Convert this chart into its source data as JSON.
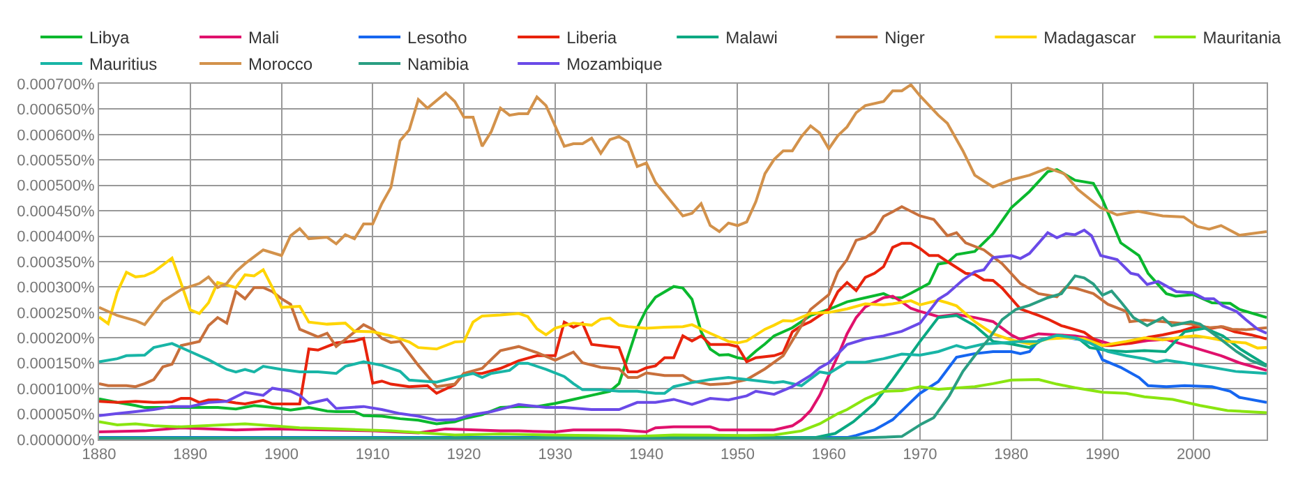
{
  "chart_data": {
    "type": "line",
    "legend": "top",
    "grid": true,
    "xlim": [
      1880,
      2008
    ],
    "ylim": [
      0,
      0.0007
    ],
    "xticks": [
      1880,
      1890,
      1900,
      1910,
      1920,
      1930,
      1940,
      1950,
      1960,
      1970,
      1980,
      1990,
      2000
    ],
    "yticks": [
      {
        "value": 0,
        "label": "0.000000%"
      },
      {
        "value": 5e-05,
        "label": "0.000050%"
      },
      {
        "value": 0.0001,
        "label": "0.000100%"
      },
      {
        "value": 0.00015,
        "label": "0.000150%"
      },
      {
        "value": 0.0002,
        "label": "0.000200%"
      },
      {
        "value": 0.00025,
        "label": "0.000250%"
      },
      {
        "value": 0.0003,
        "label": "0.000300%"
      },
      {
        "value": 0.00035,
        "label": "0.000350%"
      },
      {
        "value": 0.0004,
        "label": "0.000400%"
      },
      {
        "value": 0.00045,
        "label": "0.000450%"
      },
      {
        "value": 0.0005,
        "label": "0.000500%"
      },
      {
        "value": 0.00055,
        "label": "0.000550%"
      },
      {
        "value": 0.0006,
        "label": "0.000600%"
      },
      {
        "value": 0.00065,
        "label": "0.000650%"
      },
      {
        "value": 0.0007,
        "label": "0.000700%"
      }
    ],
    "series": [
      {
        "name": "Libya",
        "color": "#0ab82e",
        "x": [
          1880,
          1882,
          1884,
          1885,
          1887,
          1889,
          1891,
          1893,
          1895,
          1897,
          1899,
          1901,
          1903,
          1905,
          1906,
          1908,
          1909,
          1911,
          1913,
          1915,
          1917,
          1919,
          1920,
          1922,
          1924,
          1926,
          1928,
          1930,
          1932,
          1934,
          1936,
          1937,
          1938,
          1939,
          1940,
          1941,
          1943,
          1944,
          1945,
          1946,
          1947,
          1948,
          1949,
          1950,
          1951,
          1952,
          1953,
          1954,
          1956,
          1958,
          1960,
          1962,
          1964,
          1966,
          1967,
          1968,
          1969,
          1971,
          1972,
          1973,
          1974,
          1976,
          1978,
          1980,
          1982,
          1984,
          1985,
          1987,
          1989,
          1990,
          1992,
          1994,
          1995,
          1997,
          1998,
          2000,
          2002,
          2004,
          2005,
          2008
        ],
        "values": [
          8e-05,
          7.3e-05,
          6.7e-05,
          6.3e-05,
          6.3e-05,
          6.3e-05,
          6.3e-05,
          6.3e-05,
          6e-05,
          6.7e-05,
          6.3e-05,
          5.8e-05,
          6.3e-05,
          5.6e-05,
          5.5e-05,
          5.5e-05,
          4.7e-05,
          4.6e-05,
          4.1e-05,
          3.8e-05,
          3.1e-05,
          3.5e-05,
          4.1e-05,
          4.9e-05,
          6.3e-05,
          6.5e-05,
          6.5e-05,
          7.1e-05,
          7.9e-05,
          8.7e-05,
          9.5e-05,
          0.00011,
          0.000165,
          0.00022,
          0.000256,
          0.00028,
          0.000301,
          0.000298,
          0.000276,
          0.000212,
          0.000178,
          0.000166,
          0.000167,
          0.000161,
          0.000158,
          0.000174,
          0.000188,
          0.000204,
          0.00022,
          0.000244,
          0.000256,
          0.000271,
          0.000279,
          0.000287,
          0.000279,
          0.000279,
          0.000288,
          0.000307,
          0.000345,
          0.000348,
          0.000364,
          0.00037,
          0.000405,
          0.000456,
          0.000488,
          0.000527,
          0.000531,
          0.00051,
          0.000504,
          0.000472,
          0.000387,
          0.000362,
          0.000327,
          0.000287,
          0.000282,
          0.000285,
          0.000269,
          0.000268,
          0.000256,
          0.00024
        ]
      },
      {
        "name": "Mali",
        "color": "#e0116c",
        "x": [
          1880,
          1885,
          1889,
          1895,
          1899,
          1905,
          1910,
          1915,
          1918,
          1924,
          1926,
          1930,
          1932,
          1937,
          1940,
          1941,
          1943,
          1947,
          1948,
          1951,
          1954,
          1956,
          1957,
          1958,
          1959,
          1960,
          1961,
          1962,
          1963,
          1964,
          1966,
          1967,
          1968,
          1969,
          1970,
          1972,
          1974,
          1976,
          1978,
          1980,
          1981,
          1983,
          1985,
          1987,
          1989,
          1991,
          1993,
          1995,
          1997,
          2000,
          2003,
          2005,
          2008
        ],
        "values": [
          1.5e-05,
          1.7e-05,
          2.3e-05,
          1.9e-05,
          2.1e-05,
          1.9e-05,
          1.7e-05,
          1.3e-05,
          2.1e-05,
          1.7e-05,
          1.7e-05,
          1.5e-05,
          1.9e-05,
          1.9e-05,
          1.5e-05,
          2.3e-05,
          2.5e-05,
          2.5e-05,
          1.9e-05,
          1.9e-05,
          1.9e-05,
          2.7e-05,
          3.9e-05,
          5.7e-05,
          8.7e-05,
          0.000126,
          0.000165,
          0.000208,
          0.00024,
          0.000261,
          0.000279,
          0.000282,
          0.000271,
          0.000258,
          0.000252,
          0.000242,
          0.000246,
          0.00024,
          0.000232,
          0.000206,
          0.000197,
          0.000208,
          0.000206,
          0.000204,
          0.000198,
          0.000187,
          0.000189,
          0.000195,
          0.000197,
          0.000181,
          0.000165,
          0.000151,
          0.000136
        ]
      },
      {
        "name": "Lesotho",
        "color": "#1666f0",
        "x": [
          1880,
          1920,
          1962,
          1963,
          1965,
          1967,
          1969,
          1970,
          1972,
          1974,
          1976,
          1978,
          1980,
          1981,
          1982,
          1983,
          1985,
          1987,
          1989,
          1990,
          1992,
          1994,
          1995,
          1997,
          1999,
          2002,
          2004,
          2005,
          2008
        ],
        "values": [
          4e-06,
          4e-06,
          4e-06,
          8e-06,
          1.9e-05,
          3.9e-05,
          7.4e-05,
          9.1e-05,
          0.000114,
          0.000162,
          0.000169,
          0.000173,
          0.000173,
          0.000169,
          0.000173,
          0.000195,
          0.000204,
          0.000198,
          0.000193,
          0.000157,
          0.000142,
          0.000122,
          0.000106,
          0.000104,
          0.000106,
          0.000104,
          9.5e-05,
          8.3e-05,
          7.3e-05
        ]
      },
      {
        "name": "Liberia",
        "color": "#e8230c",
        "x": [
          1880,
          1882,
          1884,
          1886,
          1888,
          1889,
          1890,
          1891,
          1892,
          1893,
          1895,
          1896,
          1898,
          1899,
          1902,
          1903,
          1904,
          1906,
          1908,
          1909,
          1910,
          1911,
          1912,
          1914,
          1916,
          1917,
          1919,
          1920,
          1922,
          1924,
          1926,
          1927,
          1928,
          1930,
          1931,
          1932,
          1933,
          1934,
          1936,
          1937,
          1938,
          1939,
          1940,
          1941,
          1942,
          1943,
          1944,
          1945,
          1946,
          1947,
          1949,
          1950,
          1951,
          1952,
          1954,
          1955,
          1956,
          1957,
          1958,
          1960,
          1961,
          1962,
          1963,
          1964,
          1965,
          1966,
          1967,
          1968,
          1969,
          1970,
          1971,
          1972,
          1973,
          1975,
          1976,
          1977,
          1978,
          1979,
          1981,
          1983,
          1984,
          1985.5,
          1988,
          1990,
          1991,
          1993.5,
          1995,
          1996.6,
          1998.5,
          2000,
          2001,
          2002,
          2003,
          2004.5,
          2006.3,
          2008
        ],
        "values": [
          7.5e-05,
          7.3e-05,
          7.5e-05,
          7.3e-05,
          7.4e-05,
          8.1e-05,
          8.1e-05,
          7.3e-05,
          7.8e-05,
          7.8e-05,
          7.2e-05,
          7e-05,
          7.7e-05,
          7e-05,
          7e-05,
          0.000178,
          0.000176,
          0.00019,
          0.000194,
          0.000199,
          0.000111,
          0.000115,
          0.000109,
          0.000104,
          0.000106,
          9.1e-05,
          0.000108,
          0.00013,
          0.00013,
          0.00014,
          0.000155,
          0.00016,
          0.000165,
          0.000165,
          0.000231,
          0.000221,
          0.000229,
          0.000187,
          0.000183,
          0.000181,
          0.000133,
          0.000133,
          0.000141,
          0.000145,
          0.000161,
          0.000161,
          0.000204,
          0.000194,
          0.000204,
          0.000187,
          0.000187,
          0.000183,
          0.000153,
          0.000161,
          0.000165,
          0.000171,
          0.000212,
          0.000224,
          0.000232,
          0.000256,
          0.000291,
          0.000309,
          0.000293,
          0.000319,
          0.000327,
          0.00034,
          0.000378,
          0.000386,
          0.000386,
          0.000376,
          0.000362,
          0.000362,
          0.00035,
          0.000327,
          0.000325,
          0.000314,
          0.000313,
          0.000298,
          0.000257,
          0.000244,
          0.000237,
          0.000224,
          0.000211,
          0.000185,
          0.000185,
          0.000191,
          0.000201,
          0.000206,
          0.000213,
          0.000221,
          0.000222,
          0.000219,
          0.000222,
          0.000212,
          0.000206,
          0.000198
        ]
      },
      {
        "name": "Malawi",
        "color": "#0aa882",
        "x": [
          1880,
          1920,
          1958.6,
          1960.7,
          1962.7,
          1965,
          1967,
          1969,
          1970,
          1972,
          1974,
          1976,
          1978,
          1980,
          1982,
          1983.5,
          1985.5,
          1987.5,
          1988.6,
          1990.6,
          1992.6,
          1994.6,
          1996.9,
          1999,
          2001.2,
          2003.2,
          2005.2,
          2008
        ],
        "values": [
          3e-06,
          3e-06,
          4e-06,
          1.2e-05,
          3.5e-05,
          7.1e-05,
          0.000118,
          0.000168,
          0.000193,
          0.00024,
          0.000244,
          0.000224,
          0.000193,
          0.000188,
          0.000181,
          0.000197,
          0.000204,
          0.000197,
          0.000181,
          0.000175,
          0.000173,
          0.000175,
          0.000173,
          0.000212,
          0.000219,
          0.000204,
          0.000177,
          0.000146
        ]
      },
      {
        "name": "Niger",
        "color": "#c8703c",
        "x": [
          1880,
          1881,
          1883,
          1884,
          1885,
          1886,
          1887,
          1888,
          1889,
          1891,
          1892,
          1893,
          1894,
          1895,
          1896,
          1897,
          1898,
          1899,
          1900,
          1901,
          1902,
          1904,
          1905,
          1906,
          1907,
          1909,
          1910,
          1911,
          1912,
          1913,
          1915,
          1917,
          1919,
          1920,
          1922,
          1924,
          1926,
          1928,
          1930,
          1932,
          1933,
          1935,
          1937,
          1938,
          1939,
          1940,
          1942,
          1944,
          1945,
          1947,
          1949,
          1951,
          1953,
          1955,
          1957,
          1958,
          1960,
          1961,
          1962,
          1963,
          1964,
          1965,
          1966,
          1967,
          1968,
          1970,
          1971.5,
          1973,
          1974,
          1975,
          1977,
          1979,
          1981,
          1983,
          1985,
          1986,
          1987,
          1989,
          1990.6,
          1992.6,
          1993,
          1994.6,
          1996.6,
          1999.7,
          2001.7,
          2003.2,
          2004.2,
          2005.7,
          2008
        ],
        "values": [
          0.00011,
          0.000106,
          0.000106,
          0.000104,
          0.00011,
          0.000118,
          0.000143,
          0.000148,
          0.000185,
          0.000193,
          0.000224,
          0.00024,
          0.000229,
          0.000291,
          0.000277,
          0.000299,
          0.000299,
          0.000291,
          0.000277,
          0.000266,
          0.000217,
          0.000202,
          0.000209,
          0.000183,
          0.000197,
          0.000226,
          0.000217,
          0.000199,
          0.000191,
          0.000193,
          0.000146,
          0.000104,
          0.000109,
          0.00013,
          0.00014,
          0.000175,
          0.000183,
          0.000171,
          0.000156,
          0.000172,
          0.000151,
          0.000142,
          0.000139,
          0.000122,
          0.000122,
          0.000131,
          0.000126,
          0.000126,
          0.000115,
          0.000108,
          0.00011,
          0.000118,
          0.000139,
          0.000165,
          0.000224,
          0.000256,
          0.000285,
          0.00033,
          0.000354,
          0.000392,
          0.000397,
          0.000409,
          0.000439,
          0.000448,
          0.000458,
          0.00044,
          0.000433,
          0.000401,
          0.000407,
          0.000387,
          0.000373,
          0.000346,
          0.000307,
          0.000287,
          0.000281,
          0.0003,
          0.000298,
          0.000287,
          0.000266,
          0.000252,
          0.000232,
          0.000235,
          0.000232,
          0.000227,
          0.00022,
          0.000222,
          0.000217,
          0.000216,
          0.00022
        ]
      },
      {
        "name": "Madagascar",
        "color": "#ffd500",
        "x": [
          1880,
          1881,
          1882,
          1883,
          1884,
          1885,
          1886,
          1888,
          1889,
          1890,
          1891,
          1892,
          1893,
          1895,
          1896,
          1897,
          1898,
          1899,
          1900,
          1902,
          1903,
          1905,
          1907,
          1908,
          1910,
          1912,
          1914,
          1915,
          1917,
          1919,
          1920,
          1921,
          1922,
          1924,
          1926,
          1927,
          1928,
          1929,
          1930,
          1932,
          1934,
          1935,
          1936,
          1937,
          1938,
          1940,
          1942,
          1944,
          1945,
          1947,
          1949,
          1950,
          1951,
          1953,
          1954,
          1955,
          1956,
          1958,
          1960,
          1962,
          1964,
          1966,
          1967,
          1969,
          1970,
          1972,
          1973,
          1974,
          1976,
          1978,
          1980,
          1982,
          1984,
          1986,
          1988,
          1990,
          1992.6,
          1994.6,
          1996.6,
          1999,
          2000.2,
          2001.7,
          2003.7,
          2005.7,
          2007,
          2008
        ],
        "values": [
          0.000241,
          0.000228,
          0.00029,
          0.000329,
          0.00032,
          0.000322,
          0.00033,
          0.000357,
          0.000307,
          0.000255,
          0.000248,
          0.000269,
          0.000309,
          0.000299,
          0.000324,
          0.000322,
          0.000334,
          0.000299,
          0.00026,
          0.000262,
          0.000231,
          0.000227,
          0.000229,
          0.000213,
          0.000212,
          0.000204,
          0.000192,
          0.000181,
          0.000178,
          0.000192,
          0.000193,
          0.000231,
          0.000243,
          0.000245,
          0.000248,
          0.000242,
          0.000218,
          0.000206,
          0.000219,
          0.000229,
          0.000225,
          0.000237,
          0.000239,
          0.000225,
          0.000222,
          0.000219,
          0.000221,
          0.000222,
          0.000226,
          0.000209,
          0.000193,
          0.00019,
          0.000194,
          0.000217,
          0.000225,
          0.000234,
          0.000233,
          0.000248,
          0.00025,
          0.000257,
          0.000267,
          0.000265,
          0.000267,
          0.000273,
          0.000265,
          0.000274,
          0.000269,
          0.000263,
          0.000232,
          0.000208,
          0.000196,
          0.000188,
          0.000198,
          0.0002,
          0.000198,
          0.000185,
          0.000193,
          0.0002,
          0.000196,
          0.000202,
          0.000204,
          0.0002,
          0.000193,
          0.00019,
          0.00018,
          0.000181
        ]
      },
      {
        "name": "Mauritania",
        "color": "#8ae510",
        "x": [
          1880,
          1882,
          1884,
          1886,
          1889,
          1896,
          1899,
          1902,
          1906,
          1912,
          1919,
          1924,
          1929,
          1934,
          1939,
          1943,
          1951,
          1954,
          1957,
          1959,
          1961,
          1962,
          1964,
          1966,
          1968,
          1970,
          1972,
          1976,
          1978,
          1980,
          1983,
          1985,
          1987,
          1990,
          1992.6,
          1994.6,
          1997.7,
          2000.7,
          2003.7,
          2008
        ],
        "values": [
          3.5e-05,
          2.9e-05,
          3.1e-05,
          2.7e-05,
          2.5e-05,
          3.1e-05,
          2.7e-05,
          2.3e-05,
          2.1e-05,
          1.7e-05,
          9e-06,
          1.1e-05,
          9e-06,
          8e-06,
          6e-06,
          9e-06,
          8e-06,
          9e-06,
          1.7e-05,
          3.1e-05,
          5.1e-05,
          5.9e-05,
          8e-05,
          9.5e-05,
          9.6e-05,
          0.000104,
          9.9e-05,
          0.000104,
          0.00011,
          0.000117,
          0.000118,
          0.000109,
          0.000102,
          9.3e-05,
          9.1e-05,
          8.4e-05,
          7.9e-05,
          6.7e-05,
          5.7e-05,
          5.3e-05
        ]
      },
      {
        "name": "Mauritius",
        "color": "#18b5a6",
        "x": [
          1880,
          1882,
          1883,
          1885,
          1886,
          1888,
          1890,
          1892,
          1894,
          1895,
          1896,
          1897,
          1898,
          1900,
          1902,
          1904,
          1906,
          1907,
          1909,
          1911,
          1913,
          1914,
          1917,
          1919,
          1921,
          1922,
          1923,
          1925,
          1926,
          1927,
          1929,
          1931,
          1932,
          1933,
          1935,
          1937,
          1939,
          1941,
          1942,
          1943,
          1945,
          1947,
          1949,
          1951,
          1954,
          1955,
          1957,
          1959,
          1960,
          1962,
          1964,
          1966,
          1968,
          1970,
          1972,
          1974,
          1975,
          1977,
          1979,
          1981,
          1983,
          1985,
          1987,
          1988.6,
          1990.6,
          1992.6,
          1994.6,
          1995.9,
          1997,
          1999.7,
          2002,
          2004.6,
          2008
        ],
        "values": [
          0.000153,
          0.000159,
          0.000165,
          0.000166,
          0.000181,
          0.000189,
          0.000173,
          0.000157,
          0.000138,
          0.000133,
          0.000138,
          0.000133,
          0.000144,
          0.000138,
          0.000133,
          0.000133,
          0.00013,
          0.000144,
          0.000153,
          0.000146,
          0.000134,
          0.000117,
          0.000113,
          0.000122,
          0.00013,
          0.000122,
          0.00013,
          0.000136,
          0.00015,
          0.00015,
          0.000138,
          0.000124,
          0.00011,
          9.8e-05,
          9.8e-05,
          9.5e-05,
          9.5e-05,
          9.1e-05,
          9.1e-05,
          0.000104,
          0.000112,
          0.000118,
          0.000122,
          0.000118,
          0.000112,
          0.000114,
          0.000106,
          0.000133,
          0.00013,
          0.000152,
          0.000152,
          0.000159,
          0.000168,
          0.000166,
          0.000173,
          0.000185,
          0.00018,
          0.000188,
          0.00019,
          0.000193,
          0.000193,
          0.000205,
          0.0002,
          0.00019,
          0.000173,
          0.000165,
          0.000159,
          0.000152,
          0.000156,
          0.000149,
          0.000142,
          0.000134,
          0.00013
        ]
      },
      {
        "name": "Morocco",
        "color": "#d3924b",
        "x": [
          1880,
          1882,
          1884,
          1885,
          1887,
          1889,
          1891,
          1892,
          1893,
          1894,
          1895,
          1896,
          1898,
          1900,
          1901,
          1902,
          1903,
          1905,
          1906,
          1907,
          1908,
          1909,
          1910,
          1911,
          1912,
          1913,
          1914,
          1915,
          1916,
          1918,
          1919,
          1920,
          1921,
          1922,
          1923,
          1924,
          1925,
          1926,
          1927,
          1928,
          1929,
          1931,
          1932,
          1933,
          1934,
          1935,
          1936,
          1937,
          1938,
          1939,
          1940,
          1941,
          1944,
          1945,
          1946,
          1947,
          1948,
          1949,
          1950,
          1951,
          1952,
          1953,
          1954,
          1955,
          1956,
          1957,
          1958,
          1959,
          1960,
          1961,
          1962,
          1963,
          1964,
          1966,
          1967,
          1968,
          1969,
          1970,
          1972,
          1973,
          1974.7,
          1976,
          1978,
          1980,
          1982,
          1984,
          1985.8,
          1987.3,
          1989.8,
          1991.6,
          1993.9,
          1996.6,
          1998.9,
          2000.4,
          2001.7,
          2003,
          2005,
          2008
        ],
        "values": [
          0.00026,
          0.000244,
          0.000234,
          0.000226,
          0.000272,
          0.000295,
          0.000307,
          0.00032,
          0.000299,
          0.000307,
          0.00033,
          0.000346,
          0.000373,
          0.000362,
          0.000401,
          0.000415,
          0.000395,
          0.000398,
          0.000385,
          0.000403,
          0.000395,
          0.000424,
          0.000424,
          0.000464,
          0.000496,
          0.000588,
          0.000609,
          0.000669,
          0.000652,
          0.000682,
          0.000665,
          0.000634,
          0.000634,
          0.000577,
          0.000606,
          0.000652,
          0.000638,
          0.000641,
          0.000641,
          0.000674,
          0.000657,
          0.000577,
          0.000582,
          0.000582,
          0.000593,
          0.000563,
          0.00059,
          0.000596,
          0.000585,
          0.000537,
          0.000544,
          0.000506,
          0.00044,
          0.000445,
          0.000464,
          0.000421,
          0.000409,
          0.000426,
          0.000421,
          0.000428,
          0.000468,
          0.000523,
          0.000551,
          0.000568,
          0.000568,
          0.000596,
          0.000617,
          0.000603,
          0.000572,
          0.000598,
          0.000615,
          0.000643,
          0.000657,
          0.000665,
          0.000686,
          0.000686,
          0.000698,
          0.000676,
          0.000638,
          0.000622,
          0.000568,
          0.00052,
          0.000497,
          0.000511,
          0.00052,
          0.000534,
          0.000523,
          0.000492,
          0.000456,
          0.000442,
          0.000449,
          0.00044,
          0.000438,
          0.000419,
          0.000414,
          0.000421,
          0.000402,
          0.000409
        ]
      },
      {
        "name": "Namibia",
        "color": "#2a9e82",
        "x": [
          1880,
          1960,
          1965,
          1968,
          1970.2,
          1971.5,
          1973.2,
          1974.7,
          1976,
          1977.5,
          1979,
          1980.5,
          1982,
          1984,
          1985.5,
          1987,
          1988,
          1989,
          1990,
          1991,
          1992,
          1993.4,
          1994.9,
          1996.6,
          1997.6,
          1999.7,
          2000.7,
          2002.7,
          2004.7,
          2006.2,
          2008
        ],
        "values": [
          2e-06,
          2e-06,
          4e-06,
          6e-06,
          3.1e-05,
          4.3e-05,
          8.6e-05,
          0.000134,
          0.000165,
          0.000197,
          0.000236,
          0.000256,
          0.000264,
          0.000279,
          0.000287,
          0.000322,
          0.000318,
          0.000306,
          0.000284,
          0.000292,
          0.000271,
          0.00024,
          0.000224,
          0.00024,
          0.000224,
          0.000232,
          0.000227,
          0.000201,
          0.000173,
          0.000156,
          0.000144
        ]
      },
      {
        "name": "Mozambique",
        "color": "#6a4ae8",
        "x": [
          1880,
          1882,
          1884,
          1886,
          1888,
          1890,
          1892,
          1894,
          1896,
          1898,
          1899,
          1901,
          1902,
          1903,
          1905,
          1906,
          1909,
          1911,
          1913,
          1915,
          1917,
          1919,
          1921,
          1923,
          1926,
          1929,
          1931,
          1934,
          1937,
          1939,
          1941,
          1943,
          1945,
          1947,
          1949,
          1951,
          1952,
          1954,
          1956,
          1958,
          1959,
          1960,
          1962,
          1964,
          1966,
          1968,
          1970,
          1972,
          1973,
          1974.7,
          1976,
          1977,
          1978,
          1980,
          1981,
          1982,
          1984,
          1985,
          1986,
          1987,
          1988,
          1988.8,
          1989.8,
          1991.6,
          1993.1,
          1993.9,
          1994.9,
          1996.1,
          1998.1,
          1999.9,
          2001.2,
          2002.2,
          2003.2,
          2004.7,
          2005.7,
          2007,
          2008
        ],
        "values": [
          4.7e-05,
          5.1e-05,
          5.5e-05,
          5.9e-05,
          6.5e-05,
          6.5e-05,
          7.3e-05,
          7.5e-05,
          9.3e-05,
          8.7e-05,
          0.000101,
          9.5e-05,
          8.7e-05,
          7.1e-05,
          7.9e-05,
          6.1e-05,
          6.5e-05,
          5.9e-05,
          5.1e-05,
          4.6e-05,
          3.8e-05,
          3.9e-05,
          4.9e-05,
          5.5e-05,
          6.9e-05,
          6.3e-05,
          6.3e-05,
          5.9e-05,
          5.9e-05,
          7.3e-05,
          7.3e-05,
          7.9e-05,
          6.9e-05,
          8.1e-05,
          7.8e-05,
          8.6e-05,
          9.5e-05,
          8.9e-05,
          0.000104,
          0.000126,
          0.000141,
          0.000151,
          0.000187,
          0.000198,
          0.000204,
          0.000213,
          0.000229,
          0.000276,
          0.000287,
          0.000314,
          0.00033,
          0.000334,
          0.000358,
          0.000362,
          0.000356,
          0.000366,
          0.000407,
          0.000397,
          0.000405,
          0.000403,
          0.000412,
          0.000401,
          0.000362,
          0.000354,
          0.000327,
          0.000324,
          0.000305,
          0.000311,
          0.000291,
          0.000289,
          0.000277,
          0.000277,
          0.000263,
          0.000252,
          0.000236,
          0.000217,
          0.000209
        ]
      }
    ]
  }
}
